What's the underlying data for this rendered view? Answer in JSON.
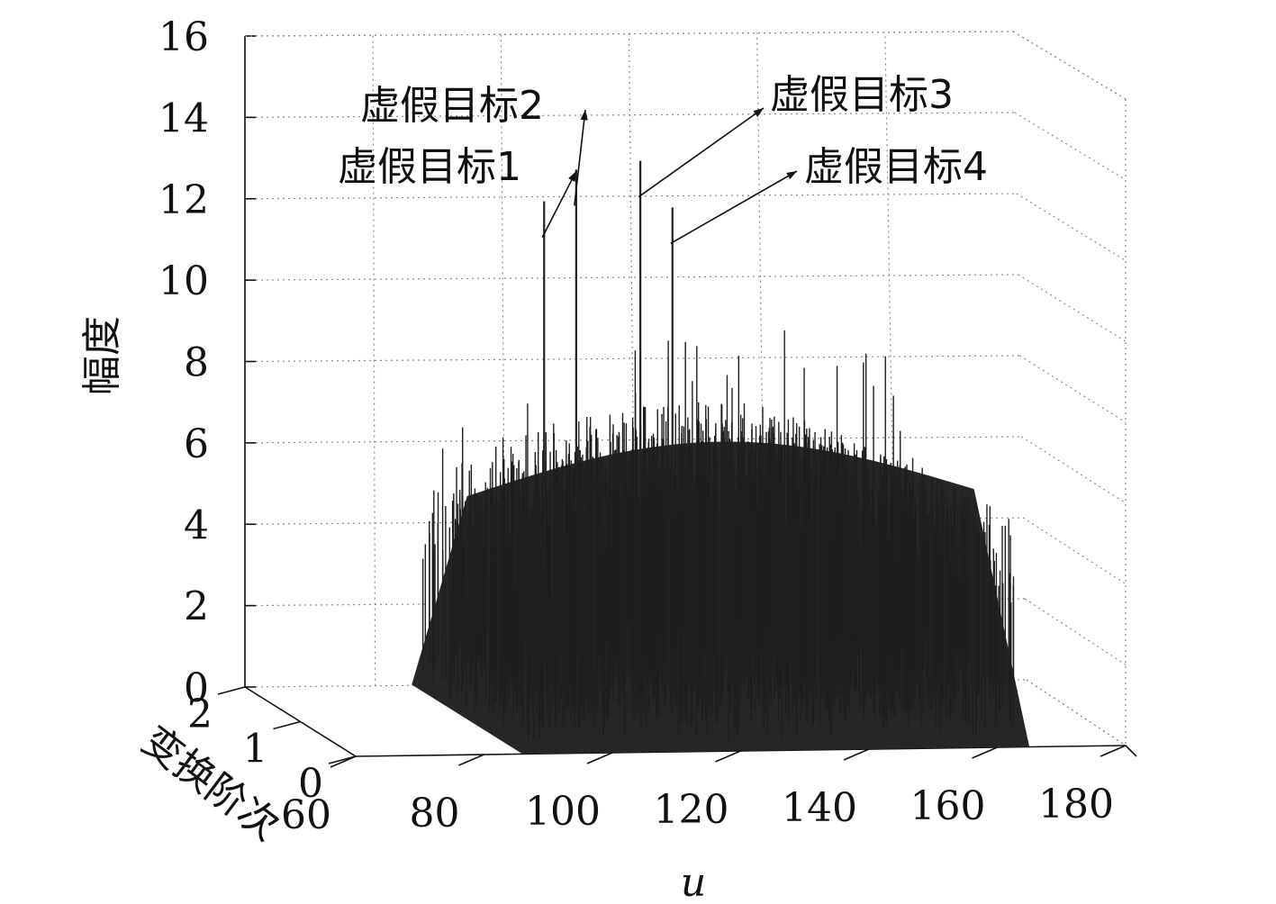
{
  "chart_data": {
    "type": "surface3d",
    "x_axis": {
      "label": "u",
      "ticks": [
        "60",
        "80",
        "100",
        "120",
        "140",
        "160",
        "180"
      ],
      "range": [
        60,
        180
      ]
    },
    "y_axis": {
      "label": "变换阶次",
      "ticks": [
        "2",
        "1",
        "0"
      ],
      "range": [
        0,
        2
      ]
    },
    "z_axis": {
      "label": "幅度",
      "ticks": [
        "0",
        "2",
        "4",
        "6",
        "8",
        "10",
        "12",
        "14",
        "16"
      ],
      "range": [
        0,
        16
      ]
    },
    "noise_floor_range": [
      5,
      7
    ],
    "grid": true,
    "annotations": [
      {
        "text": "虚假目标1",
        "u": 98,
        "amplitude": 13.2
      },
      {
        "text": "虚假目标2",
        "u": 103,
        "amplitude": 14.0
      },
      {
        "text": "虚假目标3",
        "u": 113,
        "amplitude": 14.2
      },
      {
        "text": "虚假目标4",
        "u": 118,
        "amplitude": 13.0
      }
    ]
  }
}
